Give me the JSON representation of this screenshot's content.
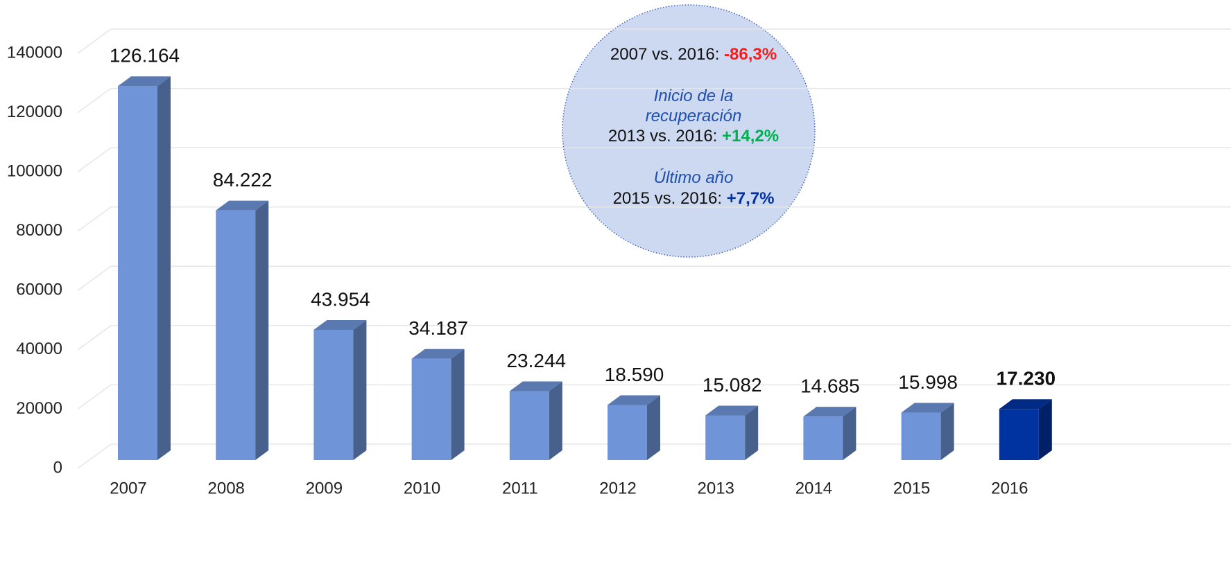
{
  "chart_data": {
    "type": "bar3d",
    "categories": [
      "2007",
      "2008",
      "2009",
      "2010",
      "2011",
      "2012",
      "2013",
      "2014",
      "2015",
      "2016"
    ],
    "values": [
      126164,
      84222,
      43954,
      34187,
      23244,
      18590,
      15082,
      14685,
      15998,
      17230
    ],
    "value_labels": [
      "126.164",
      "84.222",
      "43.954",
      "34.187",
      "23.244",
      "18.590",
      "15.082",
      "14.685",
      "15.998",
      "17.230"
    ],
    "color": "#6f94d8",
    "highlight": "2016",
    "highlight_color": "#0033a0",
    "ylim": [
      0,
      140000
    ],
    "yticks": [
      0,
      20000,
      40000,
      60000,
      80000,
      100000,
      120000,
      140000
    ],
    "grid": true,
    "annotation": [
      {
        "text": "2007 vs. 2016: ",
        "emphasis": "-86,3%",
        "emphasis_color": "#ff1a1a"
      },
      {
        "italic": "Inicio de la"
      },
      {
        "italic": "recuperación"
      },
      {
        "text": "2013 vs. 2016: ",
        "emphasis": "+14,2%",
        "emphasis_color": "#00b050"
      },
      {
        "italic": "Último año"
      },
      {
        "text": "2015 vs. 2016: ",
        "emphasis": "+7,7%",
        "emphasis_color": "#0033a0"
      }
    ]
  }
}
